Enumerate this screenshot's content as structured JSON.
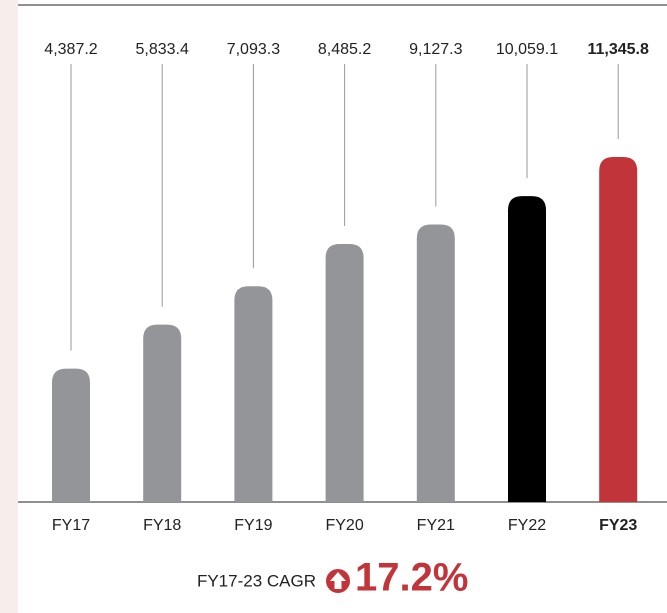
{
  "chart_data": {
    "type": "bar",
    "categories": [
      "FY17",
      "FY18",
      "FY19",
      "FY20",
      "FY21",
      "FY22",
      "FY23"
    ],
    "values": [
      4387.2,
      5833.4,
      7093.3,
      8485.2,
      9127.3,
      10059.1,
      11345.8
    ],
    "value_labels": [
      "4,387.2",
      "5,833.4",
      "7,093.3",
      "8,485.2",
      "9,127.3",
      "10,059.1",
      "11,345.8"
    ],
    "colors": [
      "#939598",
      "#939598",
      "#939598",
      "#939598",
      "#939598",
      "#000000",
      "#c1353a"
    ],
    "bold": [
      false,
      false,
      false,
      false,
      false,
      false,
      true
    ],
    "cagr_label": "FY17-23 CAGR",
    "cagr": "17.2%"
  }
}
